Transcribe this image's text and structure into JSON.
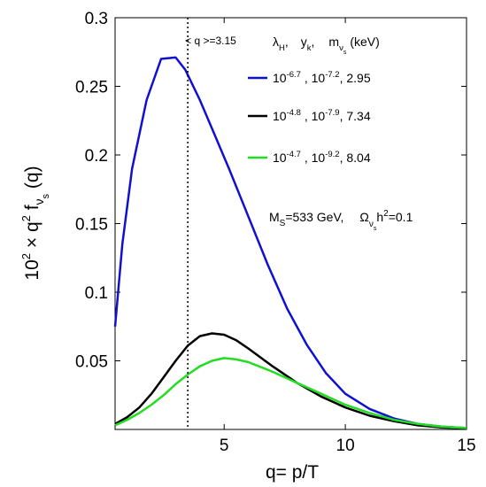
{
  "chart_data": {
    "type": "line",
    "xlabel": "q= p/T",
    "ylabel": {
      "base": "10",
      "exp": "2",
      "times": " × q",
      "q_exp": "2",
      "f": " f",
      "nu": "ν",
      "s": "s",
      "arg": " (q)"
    },
    "xlim": [
      0.5,
      15
    ],
    "ylim": [
      0,
      0.3
    ],
    "x_ticks": [
      5,
      10,
      15
    ],
    "x_tick_labels": [
      "5",
      "10",
      "15"
    ],
    "y_ticks": [
      0.05,
      0.1,
      0.15,
      0.2,
      0.25,
      0.3
    ],
    "y_tick_labels": [
      "0.05",
      "0.1",
      "0.15",
      "0.2",
      "0.25",
      "0.3"
    ],
    "grid": false,
    "legend_header": {
      "lambda": "λ",
      "lambda_sub": "H",
      "comma1": ",",
      "y": "y",
      "y_sub": "k",
      "comma2": ",",
      "m": "m",
      "m_sub": "ν",
      "m_subsub": "s",
      "unit": "(keV)"
    },
    "series": [
      {
        "color": "#1010d0",
        "legend": {
          "b1": "10",
          "e1": "-6.7",
          "mid": " , ",
          "b2": "10",
          "e2": "-7.2",
          "tail": ", 2.95"
        },
        "x": [
          0.5,
          0.8,
          1.2,
          1.8,
          2.4,
          3.0,
          3.4,
          4.0,
          4.6,
          5.2,
          6.0,
          6.8,
          7.6,
          8.4,
          9.2,
          10.0,
          11.0,
          12.0,
          13.0,
          14.0,
          15.0
        ],
        "y": [
          0.075,
          0.135,
          0.19,
          0.24,
          0.27,
          0.271,
          0.262,
          0.24,
          0.215,
          0.19,
          0.155,
          0.12,
          0.088,
          0.062,
          0.041,
          0.026,
          0.015,
          0.008,
          0.004,
          0.002,
          0.001
        ]
      },
      {
        "color": "#000000",
        "legend": {
          "b1": "10",
          "e1": "-4.8",
          "mid": " , ",
          "b2": "10",
          "e2": "-7.9",
          "tail": ", 7.34"
        },
        "x": [
          0.5,
          1.0,
          1.5,
          2.0,
          2.5,
          3.0,
          3.5,
          4.0,
          4.5,
          5.0,
          5.5,
          6.0,
          7.0,
          8.0,
          9.0,
          10.0,
          11.0,
          12.0,
          13.0,
          14.0,
          15.0
        ],
        "y": [
          0.004,
          0.009,
          0.016,
          0.026,
          0.038,
          0.05,
          0.061,
          0.068,
          0.07,
          0.069,
          0.065,
          0.059,
          0.046,
          0.034,
          0.024,
          0.016,
          0.01,
          0.006,
          0.003,
          0.0015,
          0.0008
        ]
      },
      {
        "color": "#22dd22",
        "legend": {
          "b1": "10",
          "e1": "-4.7",
          "mid": " , ",
          "b2": "10",
          "e2": "-9.2",
          "tail": ", 8.04"
        },
        "x": [
          0.5,
          1.0,
          1.5,
          2.0,
          2.5,
          3.0,
          3.5,
          4.0,
          4.5,
          5.0,
          5.5,
          6.0,
          7.0,
          8.0,
          9.0,
          10.0,
          11.0,
          12.0,
          13.0,
          14.0,
          15.0
        ],
        "y": [
          0.003,
          0.007,
          0.012,
          0.018,
          0.025,
          0.033,
          0.04,
          0.046,
          0.05,
          0.052,
          0.051,
          0.049,
          0.042,
          0.034,
          0.026,
          0.018,
          0.012,
          0.007,
          0.004,
          0.002,
          0.001
        ]
      }
    ],
    "vline": {
      "x": 3.5,
      "label": "< q >=3.15"
    },
    "annotation": {
      "M": "M",
      "M_sub": "S",
      "M_val": "=533 GeV,",
      "Omega": "Ω",
      "O_sub": "ν",
      "O_subsub": "s",
      "h": "h",
      "h_sup": "2",
      "val": "=0.1"
    }
  }
}
